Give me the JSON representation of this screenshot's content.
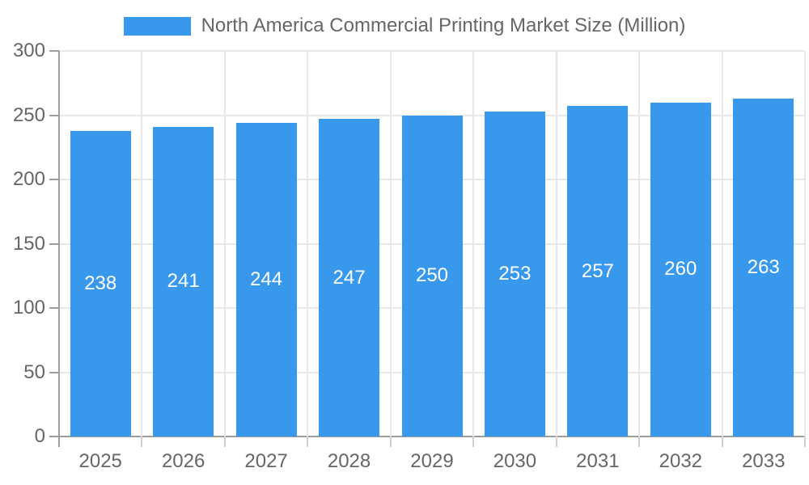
{
  "legend": {
    "label": "North America Commercial Printing Market Size (Million)"
  },
  "colors": {
    "bar": "#3899EC",
    "axis_text": "#666666",
    "value_text": "#FFFFFF",
    "grid_line": "#E8E8E8",
    "tick_line": "#CFCFCF",
    "axis_line": "#9E9E9E",
    "background": "#FFFFFF"
  },
  "chart_data": {
    "type": "bar",
    "title": "North America Commercial Printing Market Size (Million)",
    "categories": [
      "2025",
      "2026",
      "2027",
      "2028",
      "2029",
      "2030",
      "2031",
      "2032",
      "2033"
    ],
    "series": [
      {
        "name": "North America Commercial Printing Market Size (Million)",
        "values": [
          238,
          241,
          244,
          247,
          250,
          253,
          257,
          260,
          263
        ]
      }
    ],
    "xlabel": "",
    "ylabel": "",
    "ylim": [
      0,
      300
    ],
    "yticks": [
      0,
      50,
      100,
      150,
      200,
      250,
      300
    ],
    "grid": true,
    "legend_position": "top",
    "value_labels": "inside-center"
  }
}
